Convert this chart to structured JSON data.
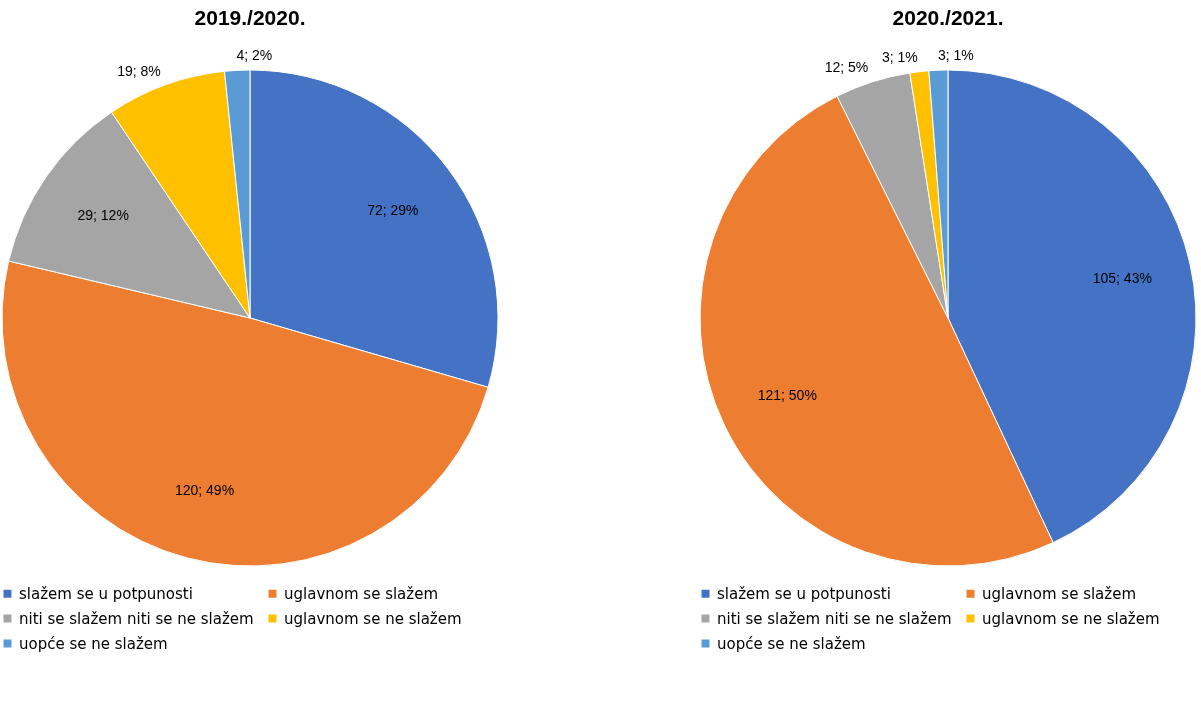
{
  "chart_data": [
    {
      "type": "pie",
      "title": "2019./2020.",
      "categories": [
        "slažem se u potpunosti",
        "uglavnom se slažem",
        "niti se slažem niti se ne slažem",
        "uglavnom se ne slažem",
        "uopće se ne slažem"
      ],
      "values": [
        72,
        120,
        29,
        19,
        4
      ],
      "colors": [
        "#4472c4",
        "#ed7d31",
        "#a5a5a5",
        "#ffc000",
        "#5b9bd5"
      ],
      "value_labels": [
        "72; 29%",
        "120; 49%",
        "29; 12%",
        "19; 8%",
        "4; 2%"
      ],
      "legend": "bottom"
    },
    {
      "type": "pie",
      "title": "2020./2021.",
      "categories": [
        "slažem se u potpunosti",
        "uglavnom se slažem",
        "niti se slažem niti se ne slažem",
        "uglavnom se ne slažem",
        "uopće se ne slažem"
      ],
      "values": [
        105,
        121,
        12,
        3,
        3
      ],
      "colors": [
        "#4472c4",
        "#ed7d31",
        "#a5a5a5",
        "#ffc000",
        "#5b9bd5"
      ],
      "value_labels": [
        "105; 43%",
        "121; 50%",
        "12; 5%",
        "3; 1%",
        "3; 1%"
      ],
      "legend": "bottom"
    }
  ]
}
